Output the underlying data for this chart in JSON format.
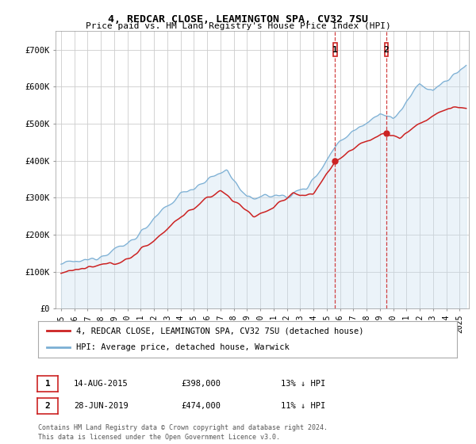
{
  "title": "4, REDCAR CLOSE, LEAMINGTON SPA, CV32 7SU",
  "subtitle": "Price paid vs. HM Land Registry's House Price Index (HPI)",
  "legend_line1": "4, REDCAR CLOSE, LEAMINGTON SPA, CV32 7SU (detached house)",
  "legend_line2": "HPI: Average price, detached house, Warwick",
  "annotation1_label": "1",
  "annotation1_date": "14-AUG-2015",
  "annotation1_price": "£398,000",
  "annotation1_pct": "13% ↓ HPI",
  "annotation1_year": 2015.62,
  "annotation1_value": 398000,
  "annotation2_label": "2",
  "annotation2_date": "28-JUN-2019",
  "annotation2_price": "£474,000",
  "annotation2_pct": "11% ↓ HPI",
  "annotation2_year": 2019.49,
  "annotation2_value": 474000,
  "footer1": "Contains HM Land Registry data © Crown copyright and database right 2024.",
  "footer2": "This data is licensed under the Open Government Licence v3.0.",
  "ylim": [
    0,
    750000
  ],
  "yticks": [
    0,
    100000,
    200000,
    300000,
    400000,
    500000,
    600000,
    700000
  ],
  "ytick_labels": [
    "£0",
    "£100K",
    "£200K",
    "£300K",
    "£400K",
    "£500K",
    "£600K",
    "£700K"
  ],
  "hpi_color": "#7bafd4",
  "hpi_fill_color": "#c8dff0",
  "price_color": "#cc2222",
  "vline_color": "#cc2222",
  "grid_color": "#cccccc",
  "bg_color": "#ffffff"
}
